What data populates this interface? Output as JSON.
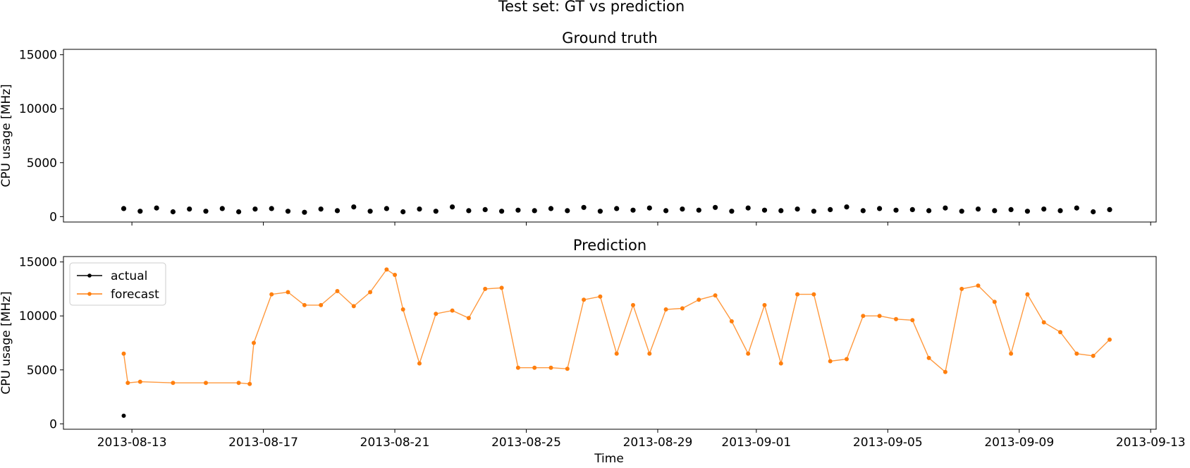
{
  "figure": {
    "suptitle": "Test set: GT vs prediction",
    "xlabel": "Time",
    "ylabel": "CPU usage [MHz]"
  },
  "chart_data": [
    {
      "type": "scatter",
      "title": "Ground truth",
      "xlabel": "",
      "ylabel": "CPU usage [MHz]",
      "x_type": "date",
      "xlim": [
        "2013-08-10T22:00",
        "2013-09-13T04:00"
      ],
      "ylim": [
        -500,
        15500
      ],
      "x_ticks": [
        "2013-08-13",
        "2013-08-17",
        "2013-08-21",
        "2013-08-25",
        "2013-08-29",
        "2013-09-01",
        "2013-09-05",
        "2013-09-09",
        "2013-09-13"
      ],
      "x_tick_labels_visible": false,
      "y_ticks": [
        0,
        5000,
        10000,
        15000
      ],
      "grid": false,
      "legend": null,
      "colors": {
        "actual": "#000000"
      },
      "series": [
        {
          "color": "#000000",
          "x": [
            "2013-08-12T18:00",
            "2013-08-13T06:00",
            "2013-08-13T18:00",
            "2013-08-14T06:00",
            "2013-08-14T18:00",
            "2013-08-15T06:00",
            "2013-08-15T18:00",
            "2013-08-16T06:00",
            "2013-08-16T18:00",
            "2013-08-17T06:00",
            "2013-08-17T18:00",
            "2013-08-18T06:00",
            "2013-08-18T18:00",
            "2013-08-19T06:00",
            "2013-08-19T18:00",
            "2013-08-20T06:00",
            "2013-08-20T18:00",
            "2013-08-21T06:00",
            "2013-08-21T18:00",
            "2013-08-22T06:00",
            "2013-08-22T18:00",
            "2013-08-23T06:00",
            "2013-08-23T18:00",
            "2013-08-24T06:00",
            "2013-08-24T18:00",
            "2013-08-25T06:00",
            "2013-08-25T18:00",
            "2013-08-26T06:00",
            "2013-08-26T18:00",
            "2013-08-27T06:00",
            "2013-08-27T18:00",
            "2013-08-28T06:00",
            "2013-08-28T18:00",
            "2013-08-29T06:00",
            "2013-08-29T18:00",
            "2013-08-30T06:00",
            "2013-08-30T18:00",
            "2013-08-31T06:00",
            "2013-08-31T18:00",
            "2013-09-01T06:00",
            "2013-09-01T18:00",
            "2013-09-02T06:00",
            "2013-09-02T18:00",
            "2013-09-03T06:00",
            "2013-09-03T18:00",
            "2013-09-04T06:00",
            "2013-09-04T18:00",
            "2013-09-05T06:00",
            "2013-09-05T18:00",
            "2013-09-06T06:00",
            "2013-09-06T18:00",
            "2013-09-07T06:00",
            "2013-09-07T18:00",
            "2013-09-08T06:00",
            "2013-09-08T18:00",
            "2013-09-09T06:00",
            "2013-09-09T18:00",
            "2013-09-10T06:00",
            "2013-09-10T18:00",
            "2013-09-11T06:00",
            "2013-09-11T18:00"
          ],
          "values": [
            750,
            500,
            800,
            450,
            700,
            500,
            750,
            450,
            700,
            750,
            500,
            400,
            700,
            550,
            900,
            500,
            750,
            450,
            700,
            500,
            900,
            550,
            650,
            500,
            600,
            550,
            750,
            550,
            850,
            500,
            750,
            600,
            800,
            550,
            700,
            600,
            850,
            500,
            800,
            600,
            550,
            700,
            500,
            650,
            900,
            550,
            750,
            600,
            650,
            550,
            800,
            500,
            700,
            550,
            650,
            500,
            700,
            550,
            800,
            450,
            650
          ]
        }
      ]
    },
    {
      "type": "line",
      "title": "Prediction",
      "xlabel": "Time",
      "ylabel": "CPU usage [MHz]",
      "x_type": "date",
      "xlim": [
        "2013-08-10T22:00",
        "2013-09-13T04:00"
      ],
      "ylim": [
        -500,
        15500
      ],
      "x_ticks": [
        "2013-08-13",
        "2013-08-17",
        "2013-08-21",
        "2013-08-25",
        "2013-08-29",
        "2013-09-01",
        "2013-09-05",
        "2013-09-09",
        "2013-09-13"
      ],
      "x_tick_labels_visible": true,
      "y_ticks": [
        0,
        5000,
        10000,
        15000
      ],
      "grid": false,
      "legend": {
        "position": "upper-left",
        "entries": [
          "actual",
          "forecast"
        ]
      },
      "colors": {
        "actual": "#000000",
        "forecast": "#ff7f0e"
      },
      "series": [
        {
          "name": "actual",
          "color": "#000000",
          "x": [
            "2013-08-12T18:00"
          ],
          "values": [
            750
          ]
        },
        {
          "name": "forecast",
          "color": "#ff7f0e",
          "x": [
            "2013-08-12T18:00",
            "2013-08-12T21:00",
            "2013-08-13T06:00",
            "2013-08-14T06:00",
            "2013-08-15T06:00",
            "2013-08-16T06:00",
            "2013-08-16T14:00",
            "2013-08-16T17:00",
            "2013-08-17T06:00",
            "2013-08-17T18:00",
            "2013-08-18T06:00",
            "2013-08-18T18:00",
            "2013-08-19T06:00",
            "2013-08-19T18:00",
            "2013-08-20T06:00",
            "2013-08-20T18:00",
            "2013-08-21T00:00",
            "2013-08-21T06:00",
            "2013-08-21T18:00",
            "2013-08-22T06:00",
            "2013-08-22T18:00",
            "2013-08-23T06:00",
            "2013-08-23T18:00",
            "2013-08-24T06:00",
            "2013-08-24T18:00",
            "2013-08-25T06:00",
            "2013-08-25T18:00",
            "2013-08-26T06:00",
            "2013-08-26T18:00",
            "2013-08-27T06:00",
            "2013-08-27T18:00",
            "2013-08-28T06:00",
            "2013-08-28T18:00",
            "2013-08-29T06:00",
            "2013-08-29T18:00",
            "2013-08-30T06:00",
            "2013-08-30T18:00",
            "2013-08-31T06:00",
            "2013-08-31T18:00",
            "2013-09-01T06:00",
            "2013-09-01T18:00",
            "2013-09-02T06:00",
            "2013-09-02T18:00",
            "2013-09-03T06:00",
            "2013-09-03T18:00",
            "2013-09-04T06:00",
            "2013-09-04T18:00",
            "2013-09-05T06:00",
            "2013-09-05T18:00",
            "2013-09-06T06:00",
            "2013-09-06T18:00",
            "2013-09-07T06:00",
            "2013-09-07T18:00",
            "2013-09-08T06:00",
            "2013-09-08T18:00",
            "2013-09-09T06:00",
            "2013-09-09T18:00",
            "2013-09-10T06:00",
            "2013-09-10T18:00",
            "2013-09-11T06:00",
            "2013-09-11T18:00"
          ],
          "values": [
            6500,
            3800,
            3900,
            3800,
            3800,
            3800,
            3700,
            7500,
            12000,
            12200,
            11000,
            11000,
            12300,
            10900,
            12200,
            14300,
            13800,
            10600,
            5600,
            10200,
            10500,
            9800,
            12500,
            12600,
            5200,
            5200,
            5200,
            5100,
            11500,
            11800,
            6500,
            11000,
            6500,
            10600,
            10700,
            11500,
            11900,
            9500,
            6500,
            11000,
            5600,
            12000,
            12000,
            5800,
            6000,
            10000,
            10000,
            9700,
            9600,
            6100,
            4800,
            12500,
            12800,
            11300,
            6500,
            12000,
            9400,
            8500,
            6500,
            6300,
            7800
          ]
        }
      ]
    }
  ]
}
